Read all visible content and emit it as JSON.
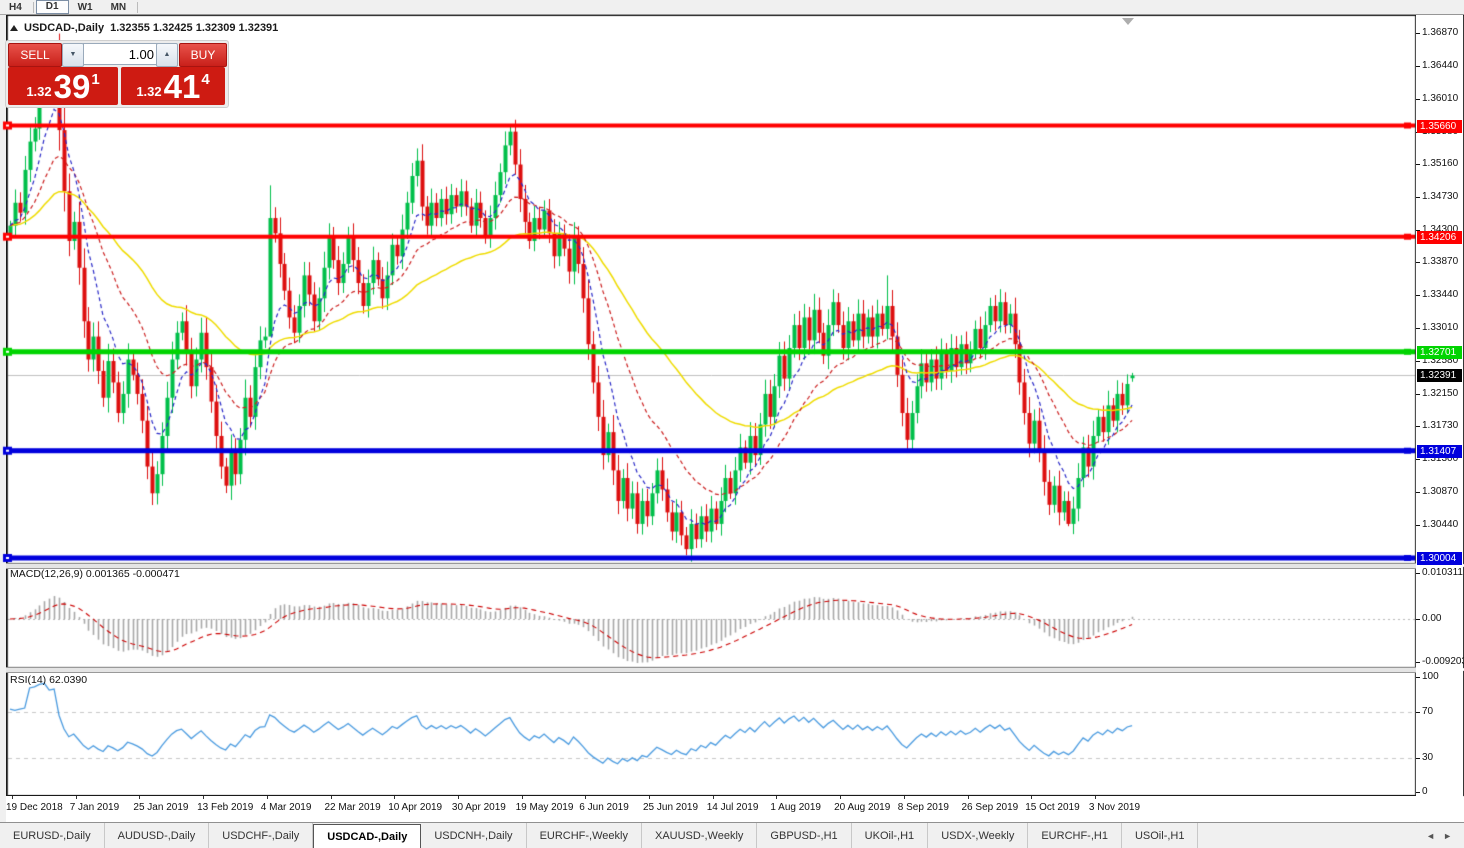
{
  "toolbar": {
    "items": [
      "H4",
      "D1",
      "W1",
      "MN"
    ],
    "active": "D1"
  },
  "header": {
    "symbol": "USDCAD-,Daily",
    "ohlc": "1.32355 1.32425 1.32309 1.32391"
  },
  "trade_panel": {
    "sell_label": "SELL",
    "buy_label": "BUY",
    "volume": "1.00",
    "sell_price": {
      "prefix": "1.32",
      "big": "39",
      "sup": "1"
    },
    "buy_price": {
      "prefix": "1.32",
      "big": "41",
      "sup": "4"
    }
  },
  "macd_panel": {
    "label": "MACD(12,26,9) 0.001365 -0.000471",
    "axis_labels": [
      "0.010311",
      "0.00",
      "-0.009203"
    ]
  },
  "rsi_panel": {
    "label": "RSI(14) 62.0390",
    "axis_labels": [
      "100",
      "70",
      "30",
      "0"
    ]
  },
  "tabs": {
    "items": [
      "EURUSD-,Daily",
      "AUDUSD-,Daily",
      "USDCHF-,Daily",
      "USDCAD-,Daily",
      "USDCNH-,Daily",
      "EURCHF-,Weekly",
      "XAUUSD-,Weekly",
      "GBPUSD-,H1",
      "UKOil-,H1",
      "USDX-,Weekly",
      "EURCHF-,H1",
      "USOil-,H1"
    ],
    "active_index": 3,
    "scroll_left_icon": "◄",
    "scroll_right_icon": "►"
  },
  "chart_data": {
    "type": "candlestick",
    "symbol": "USDCAD",
    "timeframe": "Daily",
    "price_axis_ticks": [
      "1.36870",
      "1.36440",
      "1.36010",
      "1.35580",
      "1.35160",
      "1.34730",
      "1.34300",
      "1.33870",
      "1.33440",
      "1.33010",
      "1.32580",
      "1.32150",
      "1.31730",
      "1.31300",
      "1.30870",
      "1.30440"
    ],
    "dates": [
      "19 Dec 2018",
      "7 Jan 2019",
      "25 Jan 2019",
      "13 Feb 2019",
      "4 Mar 2019",
      "22 Mar 2019",
      "10 Apr 2019",
      "30 Apr 2019",
      "19 May 2019",
      "6 Jun 2019",
      "25 Jun 2019",
      "14 Jul 2019",
      "1 Aug 2019",
      "20 Aug 2019",
      "8 Sep 2019",
      "26 Sep 2019",
      "15 Oct 2019",
      "3 Nov 2019"
    ],
    "horizontal_lines": [
      {
        "price": 1.3566,
        "label": "1.35660",
        "color": "#ff0000",
        "width": 4
      },
      {
        "price": 1.34206,
        "label": "1.34206",
        "color": "#ff0000",
        "width": 4
      },
      {
        "price": 1.32701,
        "label": "1.32701",
        "color": "#00d400",
        "width": 5
      },
      {
        "price": 1.31407,
        "label": "1.31407",
        "color": "#0000dd",
        "width": 5
      },
      {
        "price": 1.30004,
        "label": "1.30004",
        "color": "#0000dd",
        "width": 5
      }
    ],
    "current_price": {
      "value": 1.32391,
      "label": "1.32391",
      "line_color": "#c0c0c0",
      "label_bg": "#000000"
    },
    "last_candle": {
      "open": 1.32355,
      "high": 1.32425,
      "low": 1.32309,
      "close": 1.32391
    },
    "colors": {
      "up": "#00bf4a",
      "down": "#dd0f0f",
      "ma_fast": "#2a2ac8",
      "ma_mid": "#cc2020",
      "ma_slow": "#efdc00",
      "macd_hist": "#a8a8a8",
      "macd_signal": "#cc0000",
      "rsi_line": "#4a9be0",
      "rsi_levels": "#c8c8c8"
    },
    "moving_averages": [
      {
        "period": 8,
        "style": "dash"
      },
      {
        "period": 20,
        "style": "dash"
      },
      {
        "period": 50,
        "style": "solid"
      }
    ],
    "macd": {
      "fast": 12,
      "slow": 26,
      "signal": 9
    },
    "rsi": {
      "period": 14,
      "value": 62.039,
      "levels": [
        70,
        30
      ]
    },
    "closes": [
      1.3435,
      1.3465,
      1.3452,
      1.3508,
      1.3545,
      1.3562,
      1.361,
      1.3648,
      1.3632,
      1.3655,
      1.356,
      1.348,
      1.3415,
      1.344,
      1.338,
      1.331,
      1.326,
      1.329,
      1.3245,
      1.321,
      1.3258,
      1.323,
      1.319,
      1.3215,
      1.326,
      1.324,
      1.3215,
      1.318,
      1.312,
      1.3085,
      1.311,
      1.316,
      1.321,
      1.326,
      1.3295,
      1.331,
      1.327,
      1.3225,
      1.326,
      1.3295,
      1.325,
      1.3205,
      1.316,
      1.312,
      1.3095,
      1.314,
      1.311,
      1.3155,
      1.321,
      1.3185,
      1.325,
      1.3285,
      1.329,
      1.3445,
      1.3425,
      1.3385,
      1.335,
      1.3315,
      1.3295,
      1.333,
      1.337,
      1.3345,
      1.331,
      1.334,
      1.338,
      1.342,
      1.339,
      1.336,
      1.3385,
      1.342,
      1.339,
      1.336,
      1.333,
      1.336,
      1.339,
      1.3365,
      1.334,
      1.337,
      1.341,
      1.3395,
      1.343,
      1.3465,
      1.35,
      1.352,
      1.346,
      1.3435,
      1.3465,
      1.3445,
      1.347,
      1.345,
      1.3475,
      1.346,
      1.348,
      1.346,
      1.3435,
      1.3465,
      1.3445,
      1.342,
      1.3445,
      1.3475,
      1.3505,
      1.354,
      1.3558,
      1.3515,
      1.347,
      1.344,
      1.3415,
      1.3445,
      1.343,
      1.3455,
      1.3425,
      1.3395,
      1.3425,
      1.3405,
      1.3375,
      1.342,
      1.3385,
      1.334,
      1.328,
      1.323,
      1.3185,
      1.3135,
      1.3165,
      1.3115,
      1.3075,
      1.3105,
      1.3065,
      1.3085,
      1.3045,
      1.3075,
      1.3055,
      1.3085,
      1.3115,
      1.309,
      1.306,
      1.3035,
      1.306,
      1.303,
      1.3012,
      1.3045,
      1.3025,
      1.3055,
      1.3035,
      1.3065,
      1.3045,
      1.3075,
      1.3105,
      1.3085,
      1.3115,
      1.3145,
      1.3125,
      1.316,
      1.3135,
      1.3175,
      1.3215,
      1.3185,
      1.3225,
      1.3265,
      1.3235,
      1.3275,
      1.3305,
      1.3275,
      1.3315,
      1.3285,
      1.3325,
      1.3295,
      1.3265,
      1.3305,
      1.3335,
      1.3305,
      1.3275,
      1.331,
      1.3285,
      1.332,
      1.329,
      1.3315,
      1.329,
      1.332,
      1.33,
      1.333,
      1.329,
      1.324,
      1.319,
      1.3155,
      1.319,
      1.3225,
      1.3255,
      1.323,
      1.326,
      1.3235,
      1.327,
      1.3245,
      1.3275,
      1.325,
      1.328,
      1.3255,
      1.327,
      1.33,
      1.3275,
      1.3305,
      1.333,
      1.331,
      1.3335,
      1.3305,
      1.332,
      1.328,
      1.323,
      1.319,
      1.315,
      1.318,
      1.314,
      1.31,
      1.307,
      1.3095,
      1.306,
      1.3075,
      1.3045,
      1.3065,
      1.3105,
      1.3145,
      1.312,
      1.316,
      1.3185,
      1.3165,
      1.32,
      1.318,
      1.3215,
      1.32,
      1.3228,
      1.32391
    ],
    "wick_overrides": {
      "9": {
        "high": 1.367
      },
      "53": {
        "low": 1.3292
      },
      "102": {
        "high": 1.3566
      },
      "138": {
        "low": 1.3004
      },
      "179": {
        "high": 1.337
      },
      "216": {
        "low": 1.3042
      }
    }
  }
}
